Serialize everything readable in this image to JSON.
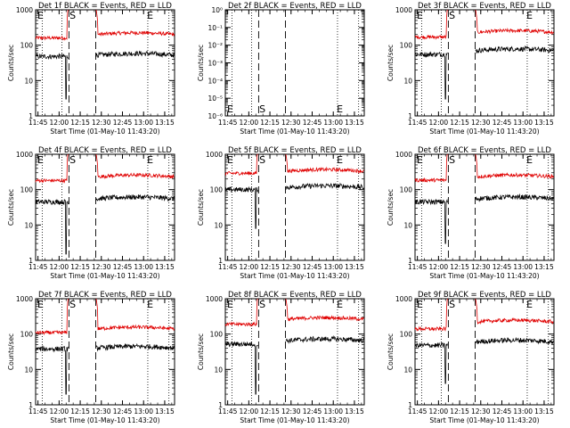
{
  "chart_data": [
    {
      "type": "line",
      "title": "Det 1f BLACK = Events, RED = LLD",
      "xlabel": "Start Time (01-May-10 11:43:20)",
      "ylabel": "Counts/sec",
      "yscale": "log",
      "ylim": [
        1,
        1000
      ],
      "yticks": [
        "1",
        "10",
        "100",
        "1000"
      ],
      "xticks": [
        "11:45",
        "12:00",
        "12:15",
        "12:30",
        "12:45",
        "13:00",
        "13:15"
      ],
      "markers": [
        "E",
        "S",
        "E"
      ],
      "gap": [
        "12:07",
        "12:26"
      ],
      "series": [
        {
          "name": "RED = LLD",
          "color": "#e00000",
          "level": 200,
          "pre": 160,
          "spike": "up"
        },
        {
          "name": "BLACK = Events",
          "color": "#000000",
          "level": 52,
          "pre": 48,
          "dip": 3
        }
      ]
    },
    {
      "type": "line",
      "title": "Det 2f BLACK = Events, RED = LLD",
      "xlabel": "Start Time (01-May-10 11:43:20)",
      "ylabel": "Counts/sec",
      "yscale": "log",
      "ylim": [
        1e-06,
        1
      ],
      "yticks": [
        "10⁻⁶",
        "10⁻⁵",
        "10⁻⁴",
        "10⁻³",
        "10⁻²",
        "10⁻¹",
        "10⁰"
      ],
      "xticks": [
        "11:45",
        "12:00",
        "12:15",
        "12:30",
        "12:45",
        "13:00",
        "13:15"
      ],
      "markers": [
        "E",
        "S",
        "E"
      ],
      "gap": [
        "12:07",
        "12:26"
      ],
      "series": []
    },
    {
      "type": "line",
      "title": "Det 3f BLACK = Events, RED = LLD",
      "xlabel": "Start Time (01-May-10 11:43:20)",
      "ylabel": "Counts/sec",
      "yscale": "log",
      "ylim": [
        1,
        1000
      ],
      "yticks": [
        "1",
        "10",
        "100",
        "1000"
      ],
      "xticks": [
        "11:45",
        "12:00",
        "12:15",
        "12:30",
        "12:45",
        "13:00",
        "13:15"
      ],
      "markers": [
        "E",
        "S",
        "E"
      ],
      "gap": [
        "12:07",
        "12:26"
      ],
      "series": [
        {
          "name": "RED = LLD",
          "color": "#e00000",
          "level": 230,
          "pre": 170,
          "spike": "up"
        },
        {
          "name": "BLACK = Events",
          "color": "#000000",
          "level": 70,
          "pre": 55,
          "dip": 3
        }
      ]
    },
    {
      "type": "line",
      "title": "Det 4f BLACK = Events, RED = LLD",
      "xlabel": "Start Time (01-May-10 11:43:20)",
      "ylabel": "Counts/sec",
      "yscale": "log",
      "ylim": [
        1,
        1000
      ],
      "yticks": [
        "1",
        "10",
        "100",
        "1000"
      ],
      "xticks": [
        "11:45",
        "12:00",
        "12:15",
        "12:30",
        "12:45",
        "13:00",
        "13:15"
      ],
      "markers": [
        "E",
        "S",
        "E"
      ],
      "gap": [
        "12:07",
        "12:26"
      ],
      "series": [
        {
          "name": "RED = LLD",
          "color": "#e00000",
          "level": 230,
          "pre": 180,
          "spike": "up"
        },
        {
          "name": "BLACK = Events",
          "color": "#000000",
          "level": 55,
          "pre": 45,
          "dip": 1.5
        }
      ]
    },
    {
      "type": "line",
      "title": "Det 5f BLACK = Events, RED = LLD",
      "xlabel": "Start Time (01-May-10 11:43:20)",
      "ylabel": "Counts/sec",
      "yscale": "log",
      "ylim": [
        1,
        1000
      ],
      "yticks": [
        "1",
        "10",
        "100",
        "1000"
      ],
      "xticks": [
        "11:45",
        "12:00",
        "12:15",
        "12:30",
        "12:45",
        "13:00",
        "13:15"
      ],
      "markers": [
        "E",
        "S",
        "E"
      ],
      "gap": [
        "12:07",
        "12:26"
      ],
      "series": [
        {
          "name": "RED = LLD",
          "color": "#e00000",
          "level": 330,
          "pre": 290,
          "spike": "up"
        },
        {
          "name": "BLACK = Events",
          "color": "#000000",
          "level": 115,
          "pre": 100,
          "dip": 8
        }
      ]
    },
    {
      "type": "line",
      "title": "Det 6f BLACK = Events, RED = LLD",
      "xlabel": "Start Time (01-May-10 11:43:20)",
      "ylabel": "Counts/sec",
      "yscale": "log",
      "ylim": [
        1,
        1000
      ],
      "yticks": [
        "1",
        "10",
        "100",
        "1000"
      ],
      "xticks": [
        "11:45",
        "12:00",
        "12:15",
        "12:30",
        "12:45",
        "13:00",
        "13:15"
      ],
      "markers": [
        "E",
        "S",
        "E"
      ],
      "gap": [
        "12:07",
        "12:26"
      ],
      "series": [
        {
          "name": "RED = LLD",
          "color": "#e00000",
          "level": 230,
          "pre": 185,
          "spike": "up"
        },
        {
          "name": "BLACK = Events",
          "color": "#000000",
          "level": 55,
          "pre": 45,
          "dip": 3
        }
      ]
    },
    {
      "type": "line",
      "title": "Det 7f BLACK = Events, RED = LLD",
      "xlabel": "Start Time (01-May-10 11:43:20)",
      "ylabel": "Counts/sec",
      "yscale": "log",
      "ylim": [
        1,
        1000
      ],
      "yticks": [
        "1",
        "10",
        "100",
        "1000"
      ],
      "xticks": [
        "11:45",
        "12:00",
        "12:15",
        "12:30",
        "12:45",
        "13:00",
        "13:15"
      ],
      "markers": [
        "E",
        "S",
        "E"
      ],
      "gap": [
        "12:07",
        "12:26"
      ],
      "series": [
        {
          "name": "RED = LLD",
          "color": "#e00000",
          "level": 140,
          "pre": 110,
          "spike": "up"
        },
        {
          "name": "BLACK = Events",
          "color": "#000000",
          "level": 40,
          "pre": 38,
          "dip": 2
        }
      ]
    },
    {
      "type": "line",
      "title": "Det 8f BLACK = Events, RED = LLD",
      "xlabel": "Start Time (01-May-10 11:43:20)",
      "ylabel": "Counts/sec",
      "yscale": "log",
      "ylim": [
        1,
        1000
      ],
      "yticks": [
        "1",
        "10",
        "100",
        "1000"
      ],
      "xticks": [
        "11:45",
        "12:00",
        "12:15",
        "12:30",
        "12:45",
        "13:00",
        "13:15"
      ],
      "markers": [
        "E",
        "S",
        "E"
      ],
      "gap": [
        "12:07",
        "12:26"
      ],
      "series": [
        {
          "name": "RED = LLD",
          "color": "#e00000",
          "level": 260,
          "pre": 190,
          "spike": "up"
        },
        {
          "name": "BLACK = Events",
          "color": "#000000",
          "level": 65,
          "pre": 52,
          "dip": 2
        }
      ]
    },
    {
      "type": "line",
      "title": "Det 9f BLACK = Events, RED = LLD",
      "xlabel": "Start Time (01-May-10 11:43:20)",
      "ylabel": "Counts/sec",
      "yscale": "log",
      "ylim": [
        1,
        1000
      ],
      "yticks": [
        "1",
        "10",
        "100",
        "1000"
      ],
      "xticks": [
        "11:45",
        "12:00",
        "12:15",
        "12:30",
        "12:45",
        "13:00",
        "13:15"
      ],
      "markers": [
        "E",
        "S",
        "E"
      ],
      "gap": [
        "12:07",
        "12:26"
      ],
      "series": [
        {
          "name": "RED = LLD",
          "color": "#e00000",
          "level": 220,
          "pre": 140,
          "spike": "up"
        },
        {
          "name": "BLACK = Events",
          "color": "#000000",
          "level": 60,
          "pre": 48,
          "dip": 4
        }
      ]
    }
  ]
}
